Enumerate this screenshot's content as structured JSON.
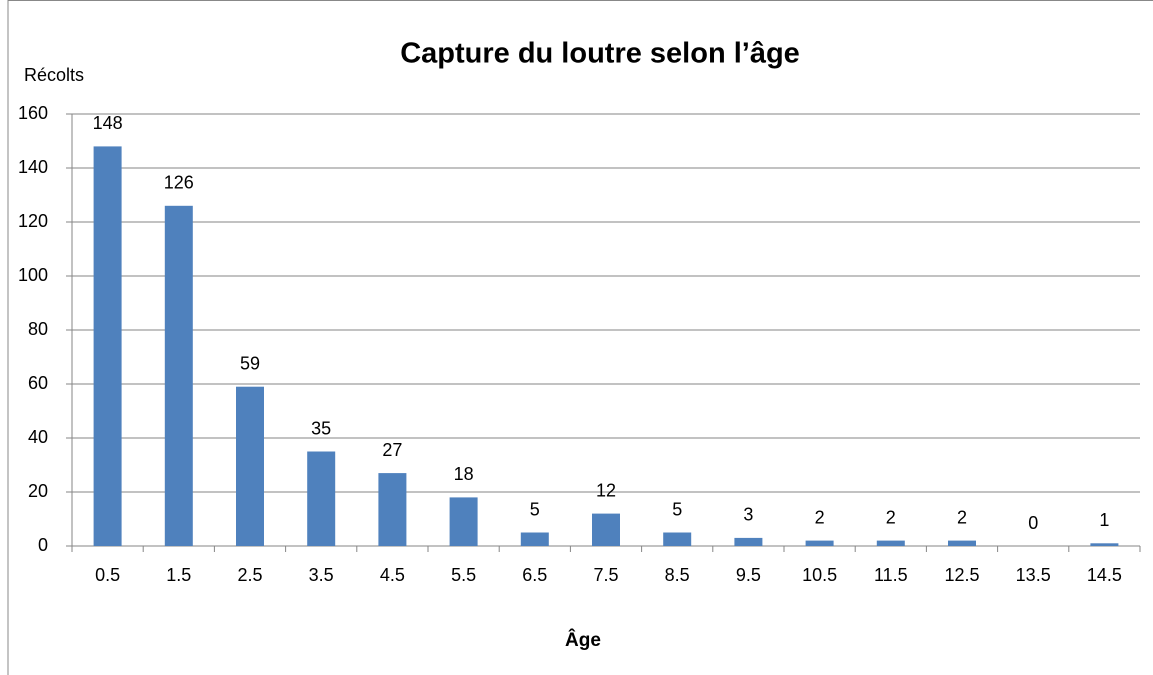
{
  "chart_data": {
    "type": "bar",
    "title": "Capture du loutre selon l’âge",
    "y_label": "Récolts",
    "x_label": "Âge",
    "categories": [
      "0.5",
      "1.5",
      "2.5",
      "3.5",
      "4.5",
      "5.5",
      "6.5",
      "7.5",
      "8.5",
      "9.5",
      "10.5",
      "11.5",
      "12.5",
      "13.5",
      "14.5"
    ],
    "values": [
      148,
      126,
      59,
      35,
      27,
      18,
      5,
      12,
      5,
      3,
      2,
      2,
      2,
      0,
      1
    ],
    "color": "#4f81bd",
    "ylim": [
      0,
      160
    ],
    "yticks": [
      0,
      20,
      40,
      60,
      80,
      100,
      120,
      140,
      160
    ],
    "grid": true
  }
}
